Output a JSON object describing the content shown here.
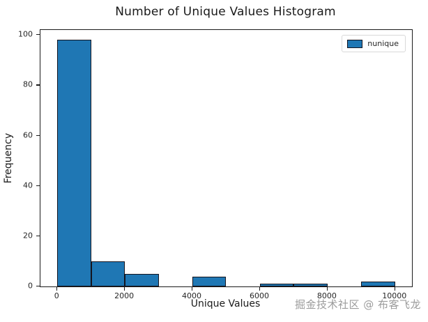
{
  "title": "Number of Unique Values Histogram",
  "watermark": "掘金技术社区 @ 布客飞龙",
  "chart_data": {
    "type": "bar",
    "subtype": "histogram",
    "title": "Number of Unique Values Histogram",
    "xlabel": "Unique Values",
    "ylabel": "Frequency",
    "legend": {
      "entries": [
        "nunique"
      ],
      "position": "upper right"
    },
    "bar_color": "#1f77b4",
    "bar_edge_color": "#14141e",
    "grid": false,
    "xlim": [
      -500,
      10500
    ],
    "ylim": [
      0,
      102
    ],
    "xticks": [
      0,
      2000,
      4000,
      6000,
      8000,
      10000
    ],
    "yticks": [
      0,
      20,
      40,
      60,
      80,
      100
    ],
    "bins": [
      {
        "x0": 0,
        "x1": 1000,
        "count": 98
      },
      {
        "x0": 1000,
        "x1": 2000,
        "count": 10
      },
      {
        "x0": 2000,
        "x1": 3000,
        "count": 5
      },
      {
        "x0": 3000,
        "x1": 4000,
        "count": 0
      },
      {
        "x0": 4000,
        "x1": 5000,
        "count": 4
      },
      {
        "x0": 5000,
        "x1": 6000,
        "count": 0
      },
      {
        "x0": 6000,
        "x1": 7000,
        "count": 1
      },
      {
        "x0": 7000,
        "x1": 8000,
        "count": 1
      },
      {
        "x0": 8000,
        "x1": 9000,
        "count": 0
      },
      {
        "x0": 9000,
        "x1": 10000,
        "count": 2
      }
    ]
  }
}
